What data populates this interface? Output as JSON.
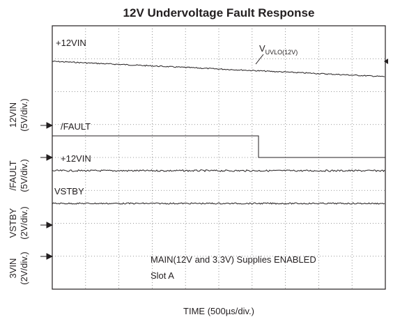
{
  "title": "12V Undervoltage Fault Response",
  "traces": [
    {
      "label": "+12VIN"
    },
    {
      "label": "/FAULT"
    },
    {
      "label": "+12VIN"
    },
    {
      "label": "VSTBY"
    }
  ],
  "threshold": {
    "label": "V",
    "subscript": "UVLO(12V)"
  },
  "channels": [
    {
      "name": "12VIN",
      "scale": "(5V/div.)"
    },
    {
      "name": "/FAULT",
      "scale": "(5V/div.)"
    },
    {
      "name": "VSTBY",
      "scale": "(2V/div.)"
    },
    {
      "name": "3VIN",
      "scale": "(2V/div.)"
    }
  ],
  "notes": [
    "MAIN(12V and 3.3V) Supplies ENABLED",
    "Slot A"
  ],
  "x_label": "TIME (500µs/div.)"
}
